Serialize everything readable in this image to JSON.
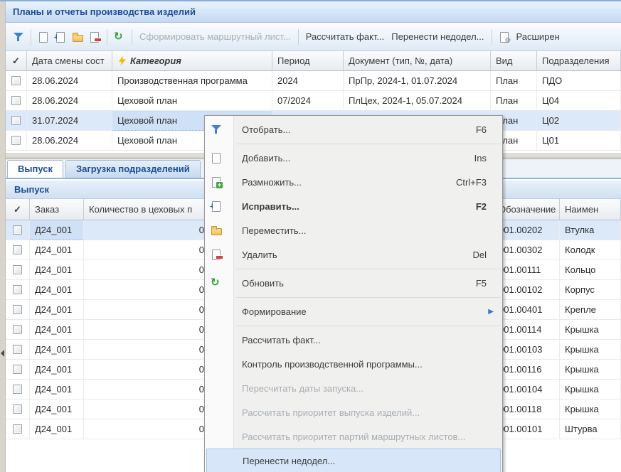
{
  "window": {
    "title": "Планы и отчеты производства изделий"
  },
  "colors": {
    "title_text": "#1e4c9a",
    "selection_row": "#dce9f8",
    "menu_highlight": "#d7e6f8",
    "accent_blue": "#3b82d0",
    "disabled_text": "#a8aeb5"
  },
  "toolbar": {
    "icons": [
      "filter-icon",
      "doc-new-icon",
      "doc-edit-icon",
      "folder-icon",
      "doc-delete-icon",
      "refresh-icon",
      "doc-gear-icon"
    ],
    "buttons": {
      "form_route_sheet": "Сформировать маршрутный лист...",
      "calc_fact": "Рассчитать факт...",
      "move_backlog": "Перенести недодел...",
      "extended": "Расширен"
    }
  },
  "top_grid": {
    "check_header": "✓",
    "columns": [
      "",
      "Дата смены сост",
      "Категория",
      "Период",
      "Документ (тип, №, дата)",
      "Вид",
      "Подразделения"
    ],
    "rows": [
      {
        "cells": [
          "28.06.2024",
          "Производственная программа",
          "2024",
          "ПрПр, 2024-1, 01.07.2024",
          "План",
          "ПДО"
        ],
        "selected": false
      },
      {
        "cells": [
          "28.06.2024",
          "Цеховой план",
          "07/2024",
          "ПлЦех, 2024-1, 05.07.2024",
          "План",
          "Ц04"
        ],
        "selected": false
      },
      {
        "cells": [
          "31.07.2024",
          "Цеховой план",
          "",
          "",
          "План",
          "Ц02"
        ],
        "selected": true
      },
      {
        "cells": [
          "28.06.2024",
          "Цеховой план",
          "",
          "",
          "План",
          "Ц01"
        ],
        "selected": false
      }
    ]
  },
  "tabs": {
    "vypusk": "Выпуск",
    "zagruzka": "Загрузка подразделений"
  },
  "section": {
    "title": "Выпуск"
  },
  "bottom_grid": {
    "check_header": "✓",
    "columns": [
      "",
      "Заказ",
      "Количество в цеховых п",
      "",
      "Обозначение",
      "Наимен"
    ],
    "rows": [
      {
        "cells": [
          "Д24_001",
          "0",
          "",
          "001.00202",
          "Втулка"
        ],
        "selected": true
      },
      {
        "cells": [
          "Д24_001",
          "0",
          "",
          "001.00302",
          "Колодк"
        ],
        "selected": false
      },
      {
        "cells": [
          "Д24_001",
          "0",
          "",
          "001.00111",
          "Кольцо"
        ],
        "selected": false
      },
      {
        "cells": [
          "Д24_001",
          "0",
          "",
          "001.00102",
          "Корпус"
        ],
        "selected": false
      },
      {
        "cells": [
          "Д24_001",
          "0",
          "",
          "001.00401",
          "Крепле"
        ],
        "selected": false
      },
      {
        "cells": [
          "Д24_001",
          "0",
          "",
          "001.00114",
          "Крышка"
        ],
        "selected": false
      },
      {
        "cells": [
          "Д24_001",
          "0",
          "",
          "001.00103",
          "Крышка"
        ],
        "selected": false
      },
      {
        "cells": [
          "Д24_001",
          "0",
          "",
          "001.00116",
          "Крышка"
        ],
        "selected": false
      },
      {
        "cells": [
          "Д24_001",
          "0",
          "",
          "001.00104",
          "Крышка"
        ],
        "selected": false
      },
      {
        "cells": [
          "Д24_001",
          "0",
          "",
          "001.00118",
          "Крышка"
        ],
        "selected": false
      },
      {
        "cells": [
          "Д24_001",
          "0",
          "",
          "001.00101",
          "Штурва"
        ],
        "selected": false
      }
    ]
  },
  "context_menu": {
    "items": [
      {
        "icon": "funnel",
        "label": "Отобрать...",
        "shortcut": "F6"
      },
      {
        "separator": true
      },
      {
        "icon": "doc-new",
        "label": "Добавить...",
        "shortcut": "Ins"
      },
      {
        "icon": "doc-plus",
        "label": "Размножить...",
        "shortcut": "Ctrl+F3"
      },
      {
        "icon": "doc-edit",
        "label": "Исправить...",
        "shortcut": "F2",
        "bold": true
      },
      {
        "icon": "folder",
        "label": "Переместить...",
        "shortcut": ""
      },
      {
        "icon": "doc-minus",
        "label": "Удалить",
        "shortcut": "Del"
      },
      {
        "separator": true
      },
      {
        "icon": "refresh",
        "label": "Обновить",
        "shortcut": "F5"
      },
      {
        "separator": true
      },
      {
        "label": "Формирование",
        "submenu": true
      },
      {
        "separator": true
      },
      {
        "label": "Рассчитать факт..."
      },
      {
        "label": "Контроль производственной программы..."
      },
      {
        "label": "Пересчитать даты запуска...",
        "disabled": true
      },
      {
        "label": "Рассчитать приоритет выпуска изделий...",
        "disabled": true
      },
      {
        "label": "Рассчитать приоритет партий маршрутных листов...",
        "disabled": true
      },
      {
        "label": "Перенести недодел...",
        "highlighted": true
      },
      {
        "separator": true
      }
    ]
  }
}
